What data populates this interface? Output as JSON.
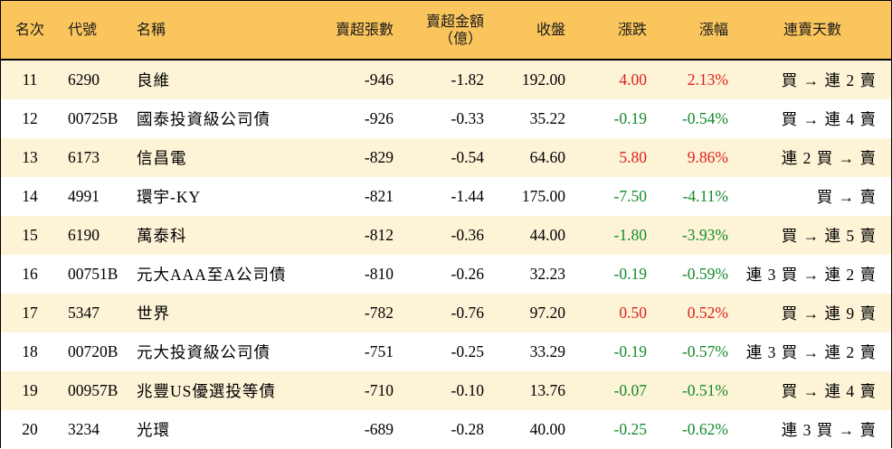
{
  "headers": {
    "rank": "名次",
    "code": "代號",
    "name": "名稱",
    "sell_volume": "賣超張數",
    "sell_amount_line1": "賣超金額",
    "sell_amount_line2": "（億）",
    "close": "收盤",
    "change": "漲跌",
    "change_pct": "漲幅",
    "streak": "連賣天數"
  },
  "colors": {
    "header_bg": "#fbc55d",
    "row_alt_bg": "#fdf3d6",
    "up": "#e0201c",
    "down": "#138a2c"
  },
  "rows": [
    {
      "rank": "11",
      "code": "6290",
      "name": "良維",
      "sell_volume": "-946",
      "sell_amount": "-1.82",
      "close": "192.00",
      "change": "4.00",
      "change_pct": "2.13%",
      "direction": "up",
      "streak": "買 → 連 2 賣"
    },
    {
      "rank": "12",
      "code": "00725B",
      "name": "國泰投資級公司債",
      "sell_volume": "-926",
      "sell_amount": "-0.33",
      "close": "35.22",
      "change": "-0.19",
      "change_pct": "-0.54%",
      "direction": "down",
      "streak": "買 → 連 4 賣"
    },
    {
      "rank": "13",
      "code": "6173",
      "name": "信昌電",
      "sell_volume": "-829",
      "sell_amount": "-0.54",
      "close": "64.60",
      "change": "5.80",
      "change_pct": "9.86%",
      "direction": "up",
      "streak": "連 2 買 → 賣"
    },
    {
      "rank": "14",
      "code": "4991",
      "name": "環宇-KY",
      "sell_volume": "-821",
      "sell_amount": "-1.44",
      "close": "175.00",
      "change": "-7.50",
      "change_pct": "-4.11%",
      "direction": "down",
      "streak": "買 → 賣"
    },
    {
      "rank": "15",
      "code": "6190",
      "name": "萬泰科",
      "sell_volume": "-812",
      "sell_amount": "-0.36",
      "close": "44.00",
      "change": "-1.80",
      "change_pct": "-3.93%",
      "direction": "down",
      "streak": "買 → 連 5 賣"
    },
    {
      "rank": "16",
      "code": "00751B",
      "name": "元大AAA至A公司債",
      "sell_volume": "-810",
      "sell_amount": "-0.26",
      "close": "32.23",
      "change": "-0.19",
      "change_pct": "-0.59%",
      "direction": "down",
      "streak": "連 3 買 → 連 2 賣"
    },
    {
      "rank": "17",
      "code": "5347",
      "name": "世界",
      "sell_volume": "-782",
      "sell_amount": "-0.76",
      "close": "97.20",
      "change": "0.50",
      "change_pct": "0.52%",
      "direction": "up",
      "streak": "買 → 連 9 賣"
    },
    {
      "rank": "18",
      "code": "00720B",
      "name": "元大投資級公司債",
      "sell_volume": "-751",
      "sell_amount": "-0.25",
      "close": "33.29",
      "change": "-0.19",
      "change_pct": "-0.57%",
      "direction": "down",
      "streak": "連 3 買 → 連 2 賣"
    },
    {
      "rank": "19",
      "code": "00957B",
      "name": "兆豐US優選投等債",
      "sell_volume": "-710",
      "sell_amount": "-0.10",
      "close": "13.76",
      "change": "-0.07",
      "change_pct": "-0.51%",
      "direction": "down",
      "streak": "買 → 連 4 賣"
    },
    {
      "rank": "20",
      "code": "3234",
      "name": "光環",
      "sell_volume": "-689",
      "sell_amount": "-0.28",
      "close": "40.00",
      "change": "-0.25",
      "change_pct": "-0.62%",
      "direction": "down",
      "streak": "連 3 買 → 賣"
    }
  ]
}
